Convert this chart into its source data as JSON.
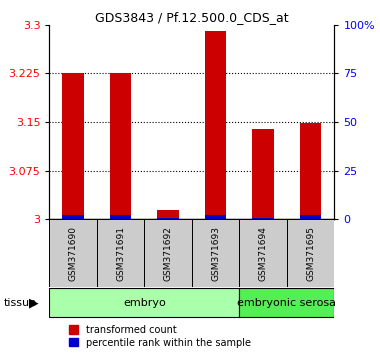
{
  "title": "GDS3843 / Pf.12.500.0_CDS_at",
  "samples": [
    "GSM371690",
    "GSM371691",
    "GSM371692",
    "GSM371693",
    "GSM371694",
    "GSM371695"
  ],
  "red_values": [
    3.225,
    3.226,
    3.015,
    3.29,
    3.14,
    3.148
  ],
  "blue_pcts": [
    2.5,
    2.5,
    1.0,
    2.5,
    1.0,
    2.5
  ],
  "ylim_left": [
    3.0,
    3.3
  ],
  "yticks_left": [
    3.0,
    3.075,
    3.15,
    3.225,
    3.3
  ],
  "yticks_left_labels": [
    "3",
    "3.075",
    "3.15",
    "3.225",
    "3.3"
  ],
  "yticks_right": [
    0,
    25,
    50,
    75,
    100
  ],
  "yticks_right_labels": [
    "0",
    "25",
    "50",
    "75",
    "100%"
  ],
  "ylim_right": [
    0,
    100
  ],
  "grid_lines": [
    3.075,
    3.15,
    3.225
  ],
  "embryo_count": 4,
  "serosa_count": 2,
  "embryo_color": "#aaffaa",
  "serosa_color": "#55ee55",
  "bar_color_red": "#cc0000",
  "bar_color_blue": "#0000cc",
  "legend_labels": [
    "transformed count",
    "percentile rank within the sample"
  ],
  "tissue_label": "tissue"
}
